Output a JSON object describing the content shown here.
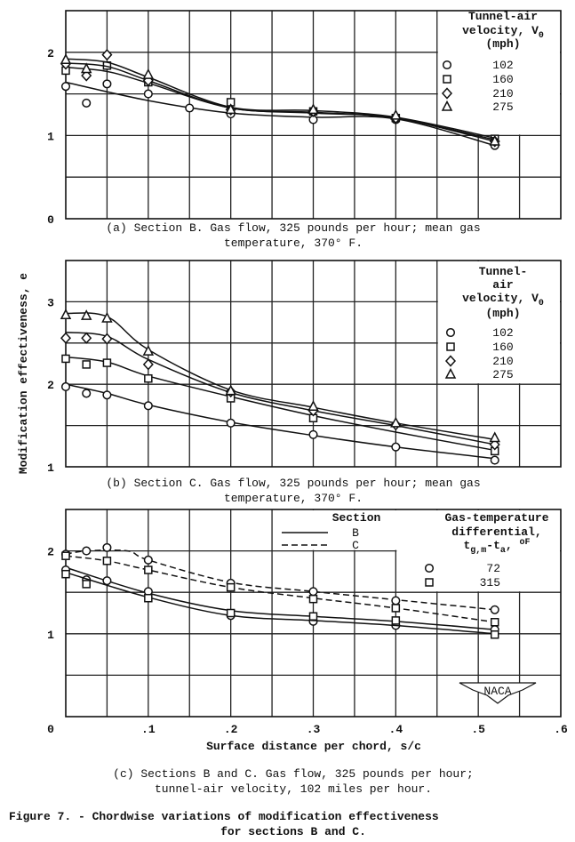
{
  "ylabel": "Modification effectiveness, e",
  "xlabel": "Surface distance per chord, s/c",
  "figure_caption": [
    "Figure 7. - Chordwise variations of modification effectiveness",
    "for sections B and C."
  ],
  "logo_text": "NACA",
  "colors": {
    "ink": "#111111",
    "background": "#ffffff"
  },
  "chart_data": [
    {
      "id": "a",
      "type": "scatter",
      "caption": [
        "(a) Section B.  Gas flow, 325 pounds per hour; mean gas",
        "temperature, 370° F."
      ],
      "xlim": [
        0,
        0.6
      ],
      "ylim": [
        0,
        2.5
      ],
      "yticks": [
        "0",
        "1",
        "2"
      ],
      "grid": true,
      "legend": {
        "position": "top-right",
        "title": [
          "Tunnel-air",
          "velocity, V",
          "(mph)"
        ],
        "title_subscript": "0"
      },
      "series": [
        {
          "name": "102",
          "marker": "circle",
          "points": [
            [
              0,
              1.59
            ],
            [
              0.025,
              1.39
            ],
            [
              0.05,
              1.62
            ],
            [
              0.1,
              1.5
            ],
            [
              0.15,
              1.33
            ],
            [
              0.2,
              1.26
            ],
            [
              0.3,
              1.19
            ],
            [
              0.4,
              1.19
            ],
            [
              0.52,
              0.88
            ]
          ],
          "curve": [
            [
              0,
              1.64
            ],
            [
              0.1,
              1.42
            ],
            [
              0.2,
              1.27
            ],
            [
              0.3,
              1.22
            ],
            [
              0.4,
              1.2
            ],
            [
              0.52,
              0.88
            ]
          ]
        },
        {
          "name": "160",
          "marker": "square",
          "points": [
            [
              0,
              1.78
            ],
            [
              0.05,
              1.84
            ],
            [
              0.1,
              1.64
            ],
            [
              0.2,
              1.4
            ],
            [
              0.3,
              1.29
            ],
            [
              0.4,
              1.21
            ],
            [
              0.52,
              0.96
            ]
          ],
          "curve": [
            [
              0,
              1.82
            ],
            [
              0.05,
              1.77
            ],
            [
              0.1,
              1.63
            ],
            [
              0.2,
              1.33
            ],
            [
              0.3,
              1.27
            ],
            [
              0.4,
              1.21
            ],
            [
              0.52,
              0.93
            ]
          ]
        },
        {
          "name": "210",
          "marker": "diamond",
          "points": [
            [
              0,
              1.86
            ],
            [
              0.025,
              1.72
            ],
            [
              0.05,
              1.97
            ],
            [
              0.1,
              1.66
            ],
            [
              0.2,
              1.31
            ],
            [
              0.3,
              1.29
            ],
            [
              0.4,
              1.21
            ],
            [
              0.52,
              0.93
            ]
          ],
          "curve": [
            [
              0,
              1.87
            ],
            [
              0.05,
              1.83
            ],
            [
              0.1,
              1.66
            ],
            [
              0.2,
              1.33
            ],
            [
              0.3,
              1.28
            ],
            [
              0.4,
              1.21
            ],
            [
              0.52,
              0.95
            ]
          ]
        },
        {
          "name": "275",
          "marker": "triangle",
          "points": [
            [
              0,
              1.91
            ],
            [
              0.025,
              1.8
            ],
            [
              0.1,
              1.73
            ],
            [
              0.2,
              1.31
            ],
            [
              0.3,
              1.31
            ],
            [
              0.4,
              1.24
            ],
            [
              0.52,
              0.93
            ]
          ],
          "curve": [
            [
              0,
              1.92
            ],
            [
              0.05,
              1.88
            ],
            [
              0.1,
              1.7
            ],
            [
              0.2,
              1.34
            ],
            [
              0.3,
              1.3
            ],
            [
              0.4,
              1.22
            ],
            [
              0.52,
              0.97
            ]
          ]
        }
      ]
    },
    {
      "id": "b",
      "type": "scatter",
      "caption": [
        "(b) Section C.  Gas flow, 325 pounds per hour; mean gas",
        "temperature, 370° F."
      ],
      "xlim": [
        0,
        0.6
      ],
      "ylim": [
        1,
        3.5
      ],
      "yticks": [
        "1",
        "2",
        "3"
      ],
      "grid": true,
      "legend": {
        "position": "top-right",
        "title": [
          "Tunnel-",
          "air",
          "velocity, V",
          "(mph)"
        ],
        "title_subscript": "0"
      },
      "series": [
        {
          "name": "102",
          "marker": "circle",
          "points": [
            [
              0,
              1.97
            ],
            [
              0.025,
              1.89
            ],
            [
              0.05,
              1.87
            ],
            [
              0.1,
              1.74
            ],
            [
              0.2,
              1.53
            ],
            [
              0.3,
              1.39
            ],
            [
              0.4,
              1.24
            ],
            [
              0.52,
              1.08
            ]
          ],
          "curve": [
            [
              0,
              2.0
            ],
            [
              0.05,
              1.89
            ],
            [
              0.1,
              1.75
            ],
            [
              0.2,
              1.54
            ],
            [
              0.3,
              1.38
            ],
            [
              0.4,
              1.24
            ],
            [
              0.52,
              1.1
            ]
          ]
        },
        {
          "name": "160",
          "marker": "square",
          "points": [
            [
              0,
              2.31
            ],
            [
              0.025,
              2.24
            ],
            [
              0.05,
              2.26
            ],
            [
              0.1,
              2.07
            ],
            [
              0.2,
              1.83
            ],
            [
              0.3,
              1.59
            ],
            [
              0.52,
              1.19
            ]
          ],
          "curve": [
            [
              0,
              2.33
            ],
            [
              0.05,
              2.27
            ],
            [
              0.1,
              2.1
            ],
            [
              0.2,
              1.85
            ],
            [
              0.3,
              1.62
            ],
            [
              0.4,
              1.42
            ],
            [
              0.52,
              1.2
            ]
          ]
        },
        {
          "name": "210",
          "marker": "diamond",
          "points": [
            [
              0,
              2.56
            ],
            [
              0.025,
              2.56
            ],
            [
              0.05,
              2.55
            ],
            [
              0.1,
              2.24
            ],
            [
              0.2,
              1.91
            ],
            [
              0.3,
              1.68
            ],
            [
              0.4,
              1.51
            ],
            [
              0.52,
              1.27
            ]
          ],
          "curve": [
            [
              0,
              2.63
            ],
            [
              0.05,
              2.58
            ],
            [
              0.1,
              2.3
            ],
            [
              0.2,
              1.9
            ],
            [
              0.3,
              1.68
            ],
            [
              0.4,
              1.5
            ],
            [
              0.52,
              1.27
            ]
          ]
        },
        {
          "name": "275",
          "marker": "triangle",
          "points": [
            [
              0,
              2.84
            ],
            [
              0.025,
              2.83
            ],
            [
              0.05,
              2.8
            ],
            [
              0.1,
              2.4
            ],
            [
              0.2,
              1.92
            ],
            [
              0.3,
              1.73
            ],
            [
              0.4,
              1.53
            ],
            [
              0.52,
              1.35
            ]
          ],
          "curve": [
            [
              0,
              2.86
            ],
            [
              0.05,
              2.82
            ],
            [
              0.1,
              2.42
            ],
            [
              0.2,
              1.93
            ],
            [
              0.3,
              1.72
            ],
            [
              0.4,
              1.53
            ],
            [
              0.52,
              1.33
            ]
          ]
        }
      ]
    },
    {
      "id": "c",
      "type": "scatter",
      "caption": [
        "(c) Sections B and C.  Gas flow, 325 pounds per hour;",
        "tunnel-air velocity, 102 miles per hour."
      ],
      "xlim": [
        0,
        0.6
      ],
      "ylim": [
        0,
        2.5
      ],
      "yticks": [
        "1",
        "2"
      ],
      "xticks": [
        "0",
        ".1",
        ".2",
        ".3",
        ".4",
        ".5",
        ".6"
      ],
      "grid": true,
      "legend": {
        "position": "top-right",
        "section_title": "Section",
        "sections": [
          {
            "label": "B",
            "line": "solid"
          },
          {
            "label": "C",
            "line": "dashed"
          }
        ],
        "title": [
          "Gas-temperature",
          "differential,"
        ],
        "formula": {
          "t1": "t",
          "sub1": "g,m",
          "t2": "-t",
          "sub2": "a",
          "t3": ", ",
          "sup": "o",
          "unit": "F"
        }
      },
      "series": [
        {
          "name": "B 72",
          "section": "B",
          "marker": "circle",
          "line": "solid",
          "label": "72",
          "points": [
            [
              0,
              1.77
            ],
            [
              0.025,
              1.65
            ],
            [
              0.05,
              1.64
            ],
            [
              0.1,
              1.51
            ],
            [
              0.2,
              1.22
            ],
            [
              0.3,
              1.15
            ],
            [
              0.4,
              1.1
            ],
            [
              0.52,
              1.05
            ]
          ],
          "curve": [
            [
              0,
              1.8
            ],
            [
              0.1,
              1.49
            ],
            [
              0.2,
              1.28
            ],
            [
              0.3,
              1.21
            ],
            [
              0.4,
              1.15
            ],
            [
              0.52,
              1.05
            ]
          ]
        },
        {
          "name": "B 315",
          "section": "B",
          "marker": "square",
          "line": "solid",
          "label": "315",
          "points": [
            [
              0,
              1.72
            ],
            [
              0.025,
              1.6
            ],
            [
              0.1,
              1.43
            ],
            [
              0.2,
              1.25
            ],
            [
              0.3,
              1.21
            ],
            [
              0.4,
              1.16
            ],
            [
              0.52,
              0.99
            ]
          ],
          "curve": [
            [
              0,
              1.74
            ],
            [
              0.1,
              1.44
            ],
            [
              0.2,
              1.22
            ],
            [
              0.3,
              1.16
            ],
            [
              0.4,
              1.1
            ],
            [
              0.52,
              1.0
            ]
          ]
        },
        {
          "name": "C 72",
          "section": "C",
          "marker": "circle",
          "line": "dashed",
          "label": "72",
          "points": [
            [
              0,
              1.96
            ],
            [
              0.025,
              2.0
            ],
            [
              0.05,
              2.04
            ],
            [
              0.1,
              1.89
            ],
            [
              0.2,
              1.61
            ],
            [
              0.3,
              1.51
            ],
            [
              0.4,
              1.4
            ],
            [
              0.52,
              1.29
            ]
          ],
          "curve": [
            [
              0,
              1.96
            ],
            [
              0.025,
              2.0
            ],
            [
              0.075,
              2.0
            ],
            [
              0.1,
              1.89
            ],
            [
              0.2,
              1.62
            ],
            [
              0.3,
              1.51
            ],
            [
              0.4,
              1.41
            ],
            [
              0.52,
              1.29
            ]
          ]
        },
        {
          "name": "C 315",
          "section": "C",
          "marker": "square",
          "line": "dashed",
          "label": "315",
          "points": [
            [
              0,
              1.94
            ],
            [
              0.05,
              1.88
            ],
            [
              0.1,
              1.77
            ],
            [
              0.2,
              1.56
            ],
            [
              0.3,
              1.42
            ],
            [
              0.4,
              1.31
            ],
            [
              0.52,
              1.14
            ]
          ],
          "curve": [
            [
              0,
              1.94
            ],
            [
              0.05,
              1.88
            ],
            [
              0.1,
              1.77
            ],
            [
              0.2,
              1.56
            ],
            [
              0.3,
              1.43
            ],
            [
              0.4,
              1.31
            ],
            [
              0.52,
              1.14
            ]
          ]
        }
      ]
    }
  ]
}
